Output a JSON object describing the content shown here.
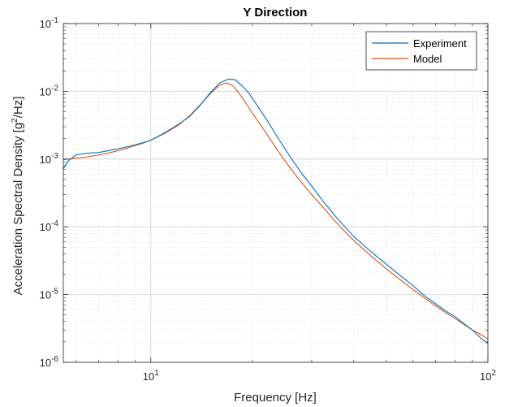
{
  "chart_data": {
    "type": "line",
    "title": "Y Direction",
    "xlabel": "Frequency [Hz]",
    "ylabel_main": "Acceleration Spectral Density [g",
    "ylabel_sup": "2",
    "ylabel_tail": "/Hz]",
    "xscale": "log",
    "yscale": "log",
    "xlim": [
      5.5,
      100
    ],
    "ylim": [
      1e-06,
      0.1
    ],
    "grid": true,
    "legend_position": "top-right",
    "x_ticks": [
      {
        "value": 10,
        "base": "10",
        "exp": "1"
      },
      {
        "value": 100,
        "base": "10",
        "exp": "2"
      }
    ],
    "y_ticks": [
      {
        "value": 0.1,
        "base": "10",
        "exp": "-1"
      },
      {
        "value": 0.01,
        "base": "10",
        "exp": "-2"
      },
      {
        "value": 0.001,
        "base": "10",
        "exp": "-3"
      },
      {
        "value": 0.0001,
        "base": "10",
        "exp": "-4"
      },
      {
        "value": 1e-05,
        "base": "10",
        "exp": "-5"
      },
      {
        "value": 1e-06,
        "base": "10",
        "exp": "-6"
      }
    ],
    "series": [
      {
        "name": "Experiment",
        "color": "#0072BD",
        "x": [
          5.5,
          5.7,
          6.0,
          6.5,
          7.0,
          7.5,
          8.0,
          8.5,
          9.0,
          9.5,
          10.0,
          11.0,
          12.0,
          13.0,
          14.0,
          15.0,
          16.0,
          17.0,
          17.8,
          18.5,
          19.5,
          20.5,
          22.0,
          24.0,
          26.0,
          28.0,
          30.0,
          32.0,
          35.0,
          38.0,
          40.0,
          45.0,
          50.0,
          55.0,
          60.0,
          65.0,
          70.0,
          75.0,
          80.0,
          85.0,
          90.0,
          95.0,
          100.0
        ],
        "y": [
          0.00072,
          0.00095,
          0.00115,
          0.00122,
          0.00125,
          0.00133,
          0.00142,
          0.00152,
          0.00163,
          0.00175,
          0.0019,
          0.00245,
          0.0032,
          0.0042,
          0.0062,
          0.0095,
          0.0133,
          0.0152,
          0.0148,
          0.0126,
          0.0095,
          0.0066,
          0.0039,
          0.00195,
          0.00105,
          0.00062,
          0.0004,
          0.00026,
          0.00015,
          9.5e-05,
          7.2e-05,
          4.3e-05,
          2.8e-05,
          1.9e-05,
          1.35e-05,
          9.5e-06,
          7.3e-06,
          5.7e-06,
          4.7e-06,
          3.7e-06,
          3e-06,
          2.3e-06,
          1.9e-06
        ]
      },
      {
        "name": "Model",
        "color": "#D95319",
        "x": [
          5.5,
          6.0,
          6.5,
          7.0,
          7.5,
          8.0,
          8.5,
          9.0,
          9.5,
          10.0,
          11.0,
          12.0,
          13.0,
          14.0,
          15.0,
          16.0,
          16.8,
          17.5,
          18.5,
          19.5,
          20.5,
          22.0,
          24.0,
          26.0,
          28.0,
          30.0,
          32.0,
          35.0,
          38.0,
          40.0,
          45.0,
          50.0,
          55.0,
          60.0,
          65.0,
          70.0,
          75.0,
          80.0,
          85.0,
          90.0,
          95.0,
          100.0
        ],
        "y": [
          0.00098,
          0.00103,
          0.00108,
          0.00115,
          0.00123,
          0.00133,
          0.00145,
          0.00158,
          0.00172,
          0.0019,
          0.0024,
          0.0031,
          0.0043,
          0.0063,
          0.0092,
          0.0123,
          0.0133,
          0.0122,
          0.0086,
          0.0058,
          0.004,
          0.0024,
          0.00125,
          0.00072,
          0.00045,
          0.0003,
          0.00021,
          0.000125,
          8.1e-05,
          6.3e-05,
          3.7e-05,
          2.4e-05,
          1.65e-05,
          1.18e-05,
          8.8e-06,
          6.8e-06,
          5.4e-06,
          4.4e-06,
          3.6e-06,
          3e-06,
          2.6e-06,
          2.2e-06
        ]
      }
    ]
  }
}
